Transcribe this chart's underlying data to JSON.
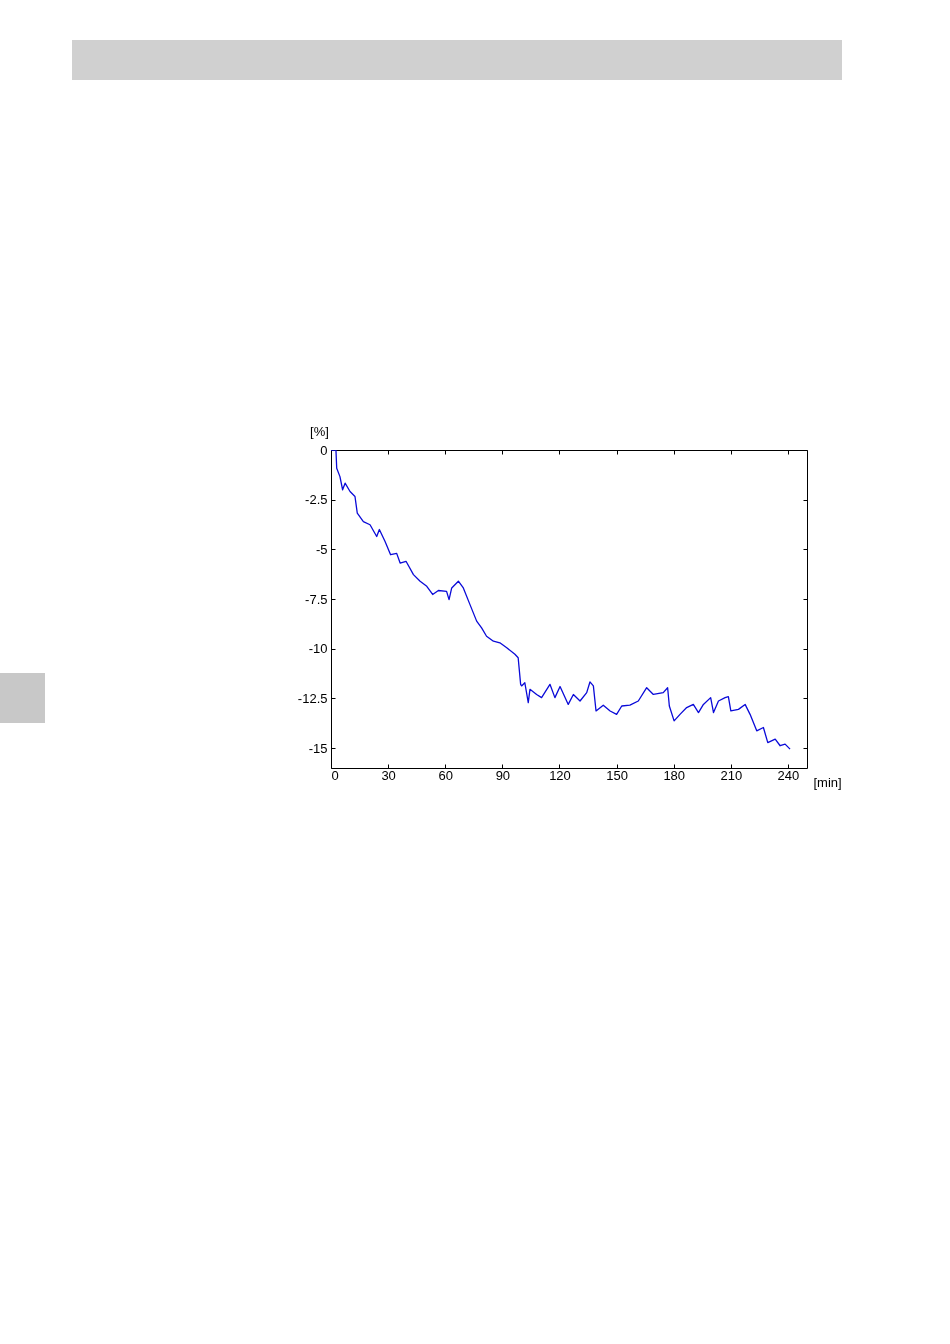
{
  "chart_data": {
    "type": "line",
    "xlabel": "[min]",
    "ylabel": "[%]",
    "x": [
      0,
      2.6,
      3,
      4.7,
      6.1,
      7.4,
      10,
      12.6,
      13.8,
      17,
      20.5,
      24,
      25.4,
      28.4,
      31.3,
      34.5,
      36.3,
      39.4,
      43.3,
      46.8,
      50.3,
      53.4,
      56.4,
      60.7,
      62,
      63.4,
      66.9,
      69.5,
      73,
      76.5,
      79.1,
      81.7,
      85.3,
      88.7,
      92.3,
      96.6,
      98.3,
      99.6,
      100.1,
      101.8,
      103.6,
      104.5,
      108,
      110.6,
      115,
      117.6,
      120.3,
      124.6,
      127.3,
      130.8,
      134.3,
      136,
      137.8,
      139.2,
      143,
      146.6,
      150,
      152.7,
      157,
      161.4,
      165.8,
      169.3,
      174.5,
      176.8,
      177.7,
      180.2,
      183.3,
      186.8,
      190.3,
      193,
      195.6,
      199.4,
      200.9,
      203.5,
      207,
      208.7,
      210,
      214,
      217.5,
      220.1,
      223.6,
      227.1,
      229.4,
      233.3,
      235.9,
      238.5,
      241.1
    ],
    "series": [
      {
        "color": "#0a0ad8",
        "values": [
          0,
          0,
          -0.92,
          -1.34,
          -2.0,
          -1.67,
          -2.09,
          -2.34,
          -3.18,
          -3.6,
          -3.76,
          -4.35,
          -4.0,
          -4.6,
          -5.27,
          -5.2,
          -5.69,
          -5.6,
          -6.27,
          -6.6,
          -6.86,
          -7.27,
          -7.07,
          -7.11,
          -7.53,
          -6.94,
          -6.6,
          -6.94,
          -7.78,
          -8.61,
          -8.95,
          -9.37,
          -9.62,
          -9.7,
          -9.95,
          -10.28,
          -10.45,
          -11.79,
          -11.87,
          -11.71,
          -12.71,
          -12.04,
          -12.3,
          -12.46,
          -11.79,
          -12.46,
          -11.9,
          -12.8,
          -12.3,
          -12.63,
          -12.21,
          -11.67,
          -11.87,
          -13.13,
          -12.84,
          -13.13,
          -13.3,
          -12.88,
          -12.84,
          -12.63,
          -11.96,
          -12.3,
          -12.21,
          -11.96,
          -12.88,
          -13.63,
          -13.3,
          -12.96,
          -12.8,
          -13.21,
          -12.8,
          -12.46,
          -13.21,
          -12.63,
          -12.46,
          -12.41,
          -13.13,
          -13.05,
          -12.8,
          -13.3,
          -14.13,
          -13.96,
          -14.72,
          -14.55,
          -14.88,
          -14.8,
          -15.05
        ]
      }
    ],
    "xlim": [
      0,
      250
    ],
    "xticks": [
      0,
      30,
      60,
      90,
      120,
      150,
      180,
      210,
      240
    ],
    "ylim": [
      -16,
      0
    ],
    "yticks": [
      0,
      -2.5,
      -5,
      -7.5,
      -10,
      -12.5,
      -15
    ]
  }
}
